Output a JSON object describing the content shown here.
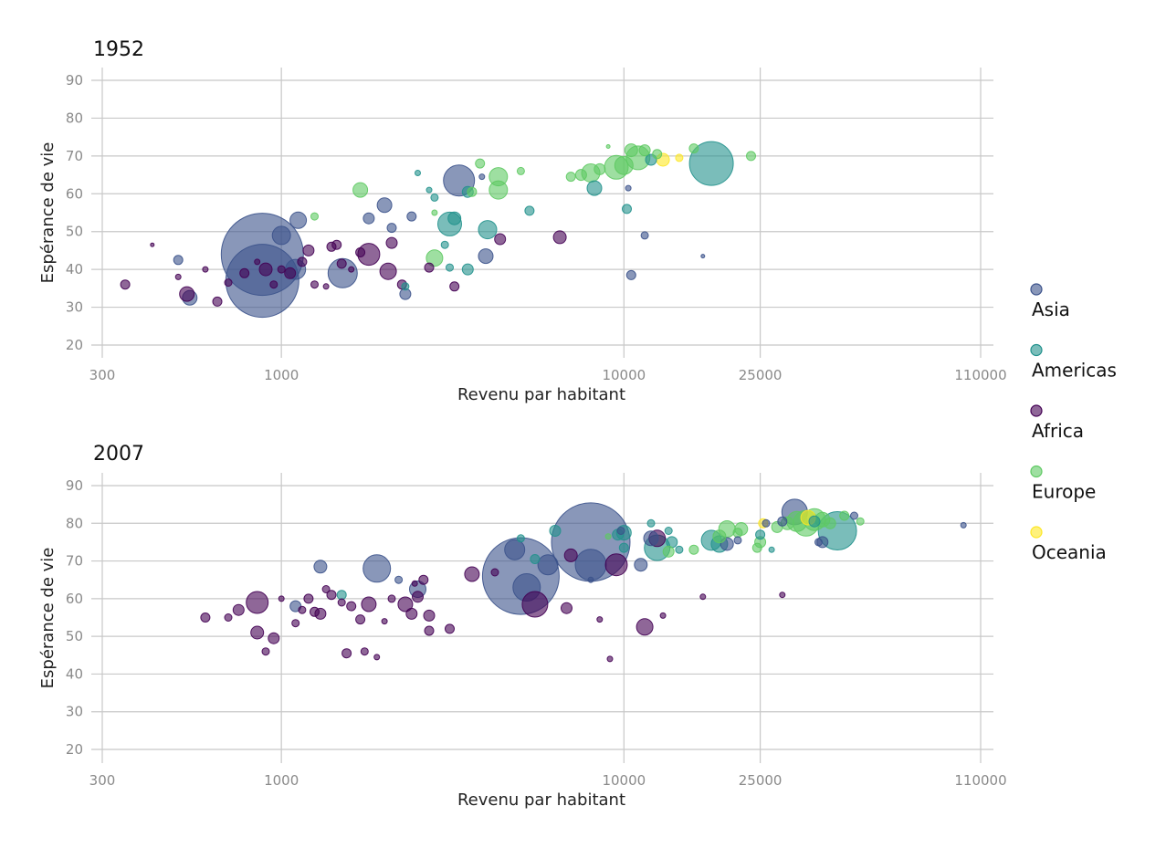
{
  "chart_data": [
    {
      "type": "scatter",
      "title": "1952",
      "xlabel": "Revenu par habitant",
      "ylabel": "Espérance de vie",
      "x_scale": "log",
      "xlim": [
        300,
        110000
      ],
      "ylim": [
        20,
        90
      ],
      "x_ticks": [
        300,
        1000,
        10000,
        25000,
        110000
      ],
      "y_ticks": [
        20,
        30,
        40,
        50,
        60,
        70,
        80,
        90
      ],
      "grid": true,
      "point_fields": [
        "x_income",
        "y_life_expectancy",
        "size_relative",
        "series"
      ],
      "points": [
        [
          880,
          44,
          45,
          "Asia"
        ],
        [
          880,
          37,
          40,
          "Asia"
        ],
        [
          1000,
          49,
          10,
          "Asia"
        ],
        [
          1120,
          53,
          9,
          "Asia"
        ],
        [
          1100,
          40,
          11,
          "Asia"
        ],
        [
          1510,
          39,
          16,
          "Asia"
        ],
        [
          2000,
          57,
          8,
          "Asia"
        ],
        [
          1800,
          53.5,
          6,
          "Asia"
        ],
        [
          3300,
          63.5,
          17,
          "Asia"
        ],
        [
          3950,
          43.5,
          8,
          "Asia"
        ],
        [
          540,
          32.5,
          8,
          "Asia"
        ],
        [
          500,
          42.5,
          5,
          "Asia"
        ],
        [
          2300,
          33.5,
          6,
          "Asia"
        ],
        [
          2400,
          54,
          5,
          "Asia"
        ],
        [
          2100,
          51,
          5,
          "Asia"
        ],
        [
          10500,
          38.5,
          5,
          "Asia"
        ],
        [
          11500,
          49,
          4,
          "Asia"
        ],
        [
          10300,
          61.5,
          3,
          "Asia"
        ],
        [
          3850,
          64.5,
          3,
          "Asia"
        ],
        [
          17000,
          43.5,
          2,
          "Asia"
        ],
        [
          18000,
          68,
          24,
          "Americas"
        ],
        [
          3100,
          52,
          13,
          "Americas"
        ],
        [
          4000,
          50.5,
          10,
          "Americas"
        ],
        [
          5300,
          55.5,
          5,
          "Americas"
        ],
        [
          8200,
          61.5,
          8,
          "Americas"
        ],
        [
          10200,
          56,
          5,
          "Americas"
        ],
        [
          3500,
          60.5,
          6,
          "Americas"
        ],
        [
          3500,
          40,
          6,
          "Americas"
        ],
        [
          3200,
          53.5,
          7,
          "Americas"
        ],
        [
          3100,
          40.5,
          4,
          "Americas"
        ],
        [
          2300,
          35.5,
          4,
          "Americas"
        ],
        [
          12000,
          69,
          6,
          "Americas"
        ],
        [
          2800,
          59,
          4,
          "Americas"
        ],
        [
          2700,
          61,
          3,
          "Americas"
        ],
        [
          2500,
          65.5,
          3,
          "Americas"
        ],
        [
          3000,
          46.5,
          4,
          "Americas"
        ],
        [
          350,
          36,
          5,
          "Africa"
        ],
        [
          420,
          46.5,
          2,
          "Africa"
        ],
        [
          500,
          38,
          3,
          "Africa"
        ],
        [
          530,
          33.5,
          8,
          "Africa"
        ],
        [
          600,
          40,
          3,
          "Africa"
        ],
        [
          650,
          31.5,
          5,
          "Africa"
        ],
        [
          700,
          36.5,
          4,
          "Africa"
        ],
        [
          780,
          39,
          5,
          "Africa"
        ],
        [
          900,
          40,
          7,
          "Africa"
        ],
        [
          950,
          36,
          4,
          "Africa"
        ],
        [
          1000,
          40,
          4,
          "Africa"
        ],
        [
          1060,
          39,
          6,
          "Africa"
        ],
        [
          1150,
          42,
          5,
          "Africa"
        ],
        [
          1200,
          45,
          6,
          "Africa"
        ],
        [
          1250,
          36,
          4,
          "Africa"
        ],
        [
          1400,
          46,
          5,
          "Africa"
        ],
        [
          1450,
          46.5,
          5,
          "Africa"
        ],
        [
          1600,
          40,
          3,
          "Africa"
        ],
        [
          1700,
          44.5,
          5,
          "Africa"
        ],
        [
          1800,
          44,
          12,
          "Africa"
        ],
        [
          2050,
          39.5,
          9,
          "Africa"
        ],
        [
          2100,
          47,
          6,
          "Africa"
        ],
        [
          2250,
          36,
          5,
          "Africa"
        ],
        [
          2700,
          40.5,
          5,
          "Africa"
        ],
        [
          3200,
          35.5,
          5,
          "Africa"
        ],
        [
          4350,
          48,
          6,
          "Africa"
        ],
        [
          6500,
          48.5,
          7,
          "Africa"
        ],
        [
          850,
          42,
          3,
          "Africa"
        ],
        [
          1500,
          41.5,
          5,
          "Africa"
        ],
        [
          1350,
          35.5,
          3,
          "Africa"
        ],
        [
          1250,
          54,
          4,
          "Europe"
        ],
        [
          1700,
          61,
          8,
          "Europe"
        ],
        [
          2800,
          43,
          9,
          "Europe"
        ],
        [
          3600,
          60.5,
          5,
          "Europe"
        ],
        [
          3800,
          68,
          5,
          "Europe"
        ],
        [
          4300,
          64.5,
          10,
          "Europe"
        ],
        [
          4300,
          61,
          10,
          "Europe"
        ],
        [
          5000,
          66,
          4,
          "Europe"
        ],
        [
          7000,
          64.5,
          5,
          "Europe"
        ],
        [
          7500,
          65,
          6,
          "Europe"
        ],
        [
          8000,
          65.5,
          10,
          "Europe"
        ],
        [
          8500,
          66.5,
          6,
          "Europe"
        ],
        [
          9500,
          67,
          13,
          "Europe"
        ],
        [
          10000,
          67.5,
          10,
          "Europe"
        ],
        [
          10500,
          71.5,
          7,
          "Europe"
        ],
        [
          11000,
          69.5,
          13,
          "Europe"
        ],
        [
          11500,
          71.5,
          6,
          "Europe"
        ],
        [
          12500,
          70.5,
          5,
          "Europe"
        ],
        [
          16000,
          72,
          5,
          "Europe"
        ],
        [
          23500,
          70,
          5,
          "Europe"
        ],
        [
          9000,
          72.5,
          2,
          "Europe"
        ],
        [
          2800,
          55,
          3,
          "Europe"
        ],
        [
          13000,
          69,
          7,
          "Oceania"
        ],
        [
          14500,
          69.5,
          4,
          "Oceania"
        ]
      ]
    },
    {
      "type": "scatter",
      "title": "2007",
      "xlabel": "Revenu par habitant",
      "ylabel": "Espérance de vie",
      "x_scale": "log",
      "xlim": [
        300,
        110000
      ],
      "ylim": [
        20,
        90
      ],
      "x_ticks": [
        300,
        1000,
        10000,
        25000,
        110000
      ],
      "y_ticks": [
        20,
        30,
        40,
        50,
        60,
        70,
        80,
        90
      ],
      "grid": true,
      "point_fields": [
        "x_income",
        "y_life_expectancy",
        "size_relative",
        "series"
      ],
      "points": [
        [
          5000,
          66,
          42,
          "Asia"
        ],
        [
          8000,
          75,
          43,
          "Asia"
        ],
        [
          5200,
          63,
          15,
          "Asia"
        ],
        [
          1900,
          68,
          15,
          "Asia"
        ],
        [
          2500,
          62.5,
          9,
          "Asia"
        ],
        [
          4800,
          73,
          11,
          "Asia"
        ],
        [
          8000,
          69,
          17,
          "Asia"
        ],
        [
          6000,
          69,
          11,
          "Asia"
        ],
        [
          31500,
          83,
          14,
          "Asia"
        ],
        [
          38000,
          75,
          6,
          "Asia"
        ],
        [
          11200,
          69,
          7,
          "Asia"
        ],
        [
          12000,
          76,
          8,
          "Asia"
        ],
        [
          20000,
          74.5,
          7,
          "Asia"
        ],
        [
          47000,
          82,
          4,
          "Asia"
        ],
        [
          21500,
          75.5,
          4,
          "Asia"
        ],
        [
          1300,
          68.5,
          7,
          "Asia"
        ],
        [
          1100,
          58,
          6,
          "Asia"
        ],
        [
          2200,
          65,
          4,
          "Asia"
        ],
        [
          9800,
          78,
          4,
          "Asia"
        ],
        [
          29000,
          80.5,
          5,
          "Asia"
        ],
        [
          26000,
          80,
          4,
          "Asia"
        ],
        [
          8000,
          65,
          3,
          "Asia"
        ],
        [
          98000,
          79.5,
          3,
          "Asia"
        ],
        [
          37000,
          75,
          4,
          "Asia"
        ],
        [
          42000,
          78,
          21,
          "Americas"
        ],
        [
          12500,
          73.5,
          14,
          "Americas"
        ],
        [
          18000,
          75.5,
          11,
          "Americas"
        ],
        [
          10000,
          77.5,
          8,
          "Americas"
        ],
        [
          19000,
          74.5,
          9,
          "Americas"
        ],
        [
          13800,
          75,
          6,
          "Americas"
        ],
        [
          9600,
          77,
          6,
          "Americas"
        ],
        [
          6300,
          78,
          6,
          "Americas"
        ],
        [
          5500,
          70.5,
          5,
          "Americas"
        ],
        [
          5000,
          76,
          4,
          "Americas"
        ],
        [
          1500,
          61,
          5,
          "Americas"
        ],
        [
          13500,
          78,
          4,
          "Americas"
        ],
        [
          25000,
          77,
          5,
          "Americas"
        ],
        [
          27000,
          73,
          3,
          "Americas"
        ],
        [
          12000,
          80,
          4,
          "Americas"
        ],
        [
          36000,
          80.5,
          6,
          "Americas"
        ],
        [
          10000,
          73.5,
          5,
          "Americas"
        ],
        [
          14500,
          73,
          4,
          "Americas"
        ],
        [
          600,
          55,
          5,
          "Africa"
        ],
        [
          700,
          55,
          4,
          "Africa"
        ],
        [
          750,
          57,
          6,
          "Africa"
        ],
        [
          850,
          59,
          12,
          "Africa"
        ],
        [
          850,
          51,
          7,
          "Africa"
        ],
        [
          900,
          46,
          4,
          "Africa"
        ],
        [
          950,
          49.5,
          6,
          "Africa"
        ],
        [
          1000,
          60,
          3,
          "Africa"
        ],
        [
          1100,
          53.5,
          4,
          "Africa"
        ],
        [
          1150,
          57,
          4,
          "Africa"
        ],
        [
          1200,
          60,
          5,
          "Africa"
        ],
        [
          1250,
          56.5,
          5,
          "Africa"
        ],
        [
          1300,
          56,
          6,
          "Africa"
        ],
        [
          1350,
          62.5,
          4,
          "Africa"
        ],
        [
          1400,
          61,
          5,
          "Africa"
        ],
        [
          1500,
          59,
          4,
          "Africa"
        ],
        [
          1600,
          58,
          5,
          "Africa"
        ],
        [
          1700,
          54.5,
          5,
          "Africa"
        ],
        [
          1800,
          58.5,
          8,
          "Africa"
        ],
        [
          1900,
          44.5,
          3,
          "Africa"
        ],
        [
          2100,
          60,
          4,
          "Africa"
        ],
        [
          2300,
          58.5,
          8,
          "Africa"
        ],
        [
          2400,
          56,
          6,
          "Africa"
        ],
        [
          2500,
          60.5,
          6,
          "Africa"
        ],
        [
          2600,
          65,
          5,
          "Africa"
        ],
        [
          2700,
          55.5,
          6,
          "Africa"
        ],
        [
          2700,
          51.5,
          5,
          "Africa"
        ],
        [
          3100,
          52,
          5,
          "Africa"
        ],
        [
          3600,
          66.5,
          8,
          "Africa"
        ],
        [
          4200,
          67,
          4,
          "Africa"
        ],
        [
          5500,
          58.5,
          14,
          "Africa"
        ],
        [
          6800,
          57.5,
          6,
          "Africa"
        ],
        [
          7000,
          71.5,
          7,
          "Africa"
        ],
        [
          8500,
          54.5,
          3,
          "Africa"
        ],
        [
          9500,
          69,
          12,
          "Africa"
        ],
        [
          11500,
          52.5,
          9,
          "Africa"
        ],
        [
          12500,
          76,
          9,
          "Africa"
        ],
        [
          13000,
          55.5,
          3,
          "Africa"
        ],
        [
          17000,
          60.5,
          3,
          "Africa"
        ],
        [
          29000,
          61,
          3,
          "Africa"
        ],
        [
          2000,
          54,
          3,
          "Africa"
        ],
        [
          9100,
          44,
          3,
          "Africa"
        ],
        [
          1750,
          46,
          4,
          "Africa"
        ],
        [
          1550,
          45.5,
          5,
          "Africa"
        ],
        [
          2450,
          64,
          3,
          "Africa"
        ],
        [
          22000,
          78.5,
          7,
          "Europe"
        ],
        [
          25000,
          75,
          6,
          "Europe"
        ],
        [
          28000,
          79,
          6,
          "Europe"
        ],
        [
          30000,
          80,
          7,
          "Europe"
        ],
        [
          32000,
          80.5,
          11,
          "Europe"
        ],
        [
          34000,
          80,
          14,
          "Europe"
        ],
        [
          36000,
          81,
          12,
          "Europe"
        ],
        [
          38000,
          81,
          8,
          "Europe"
        ],
        [
          40000,
          80,
          6,
          "Europe"
        ],
        [
          44000,
          82,
          5,
          "Europe"
        ],
        [
          49000,
          80.5,
          4,
          "Europe"
        ],
        [
          24500,
          73.5,
          5,
          "Europe"
        ],
        [
          16000,
          73,
          5,
          "Europe"
        ],
        [
          19000,
          76.5,
          7,
          "Europe"
        ],
        [
          20000,
          78.5,
          9,
          "Europe"
        ],
        [
          21500,
          77.5,
          5,
          "Europe"
        ],
        [
          13500,
          72.5,
          6,
          "Europe"
        ],
        [
          9000,
          76.5,
          3,
          "Europe"
        ],
        [
          34500,
          81.5,
          8,
          "Oceania"
        ],
        [
          25500,
          80,
          5,
          "Oceania"
        ]
      ]
    }
  ],
  "legend": {
    "placement": "right",
    "items": [
      {
        "label": "Asia",
        "color": "#3b528b"
      },
      {
        "label": "Americas",
        "color": "#21918c"
      },
      {
        "label": "Africa",
        "color": "#440154"
      },
      {
        "label": "Europe",
        "color": "#5ec962"
      },
      {
        "label": "Oceania",
        "color": "#fde725"
      }
    ]
  }
}
